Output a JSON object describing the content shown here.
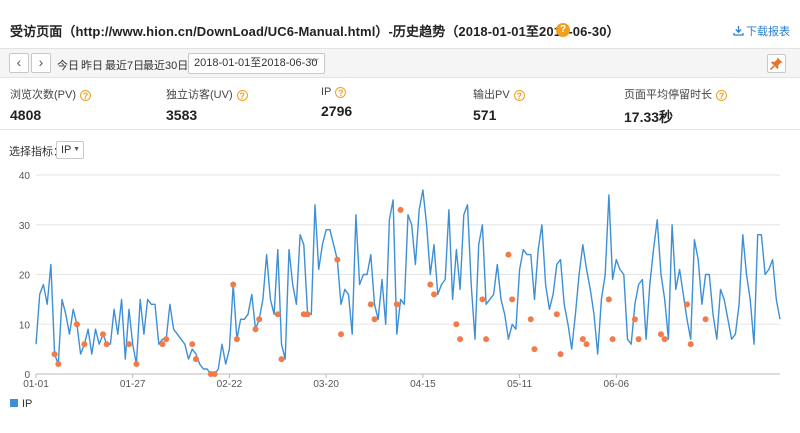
{
  "header": {
    "title": "受访页面（http://www.hion.cn/DownLoad/UC6-Manual.html）-历史趋势（2018-01-01至2018-06-30）",
    "help": "?",
    "download_label": "下载报表"
  },
  "toolbar": {
    "prev": "‹",
    "next": "›",
    "ranges": [
      "今日",
      "昨日",
      "最近7日",
      "最近30日"
    ],
    "date_range": "2018-01-01至2018-06-30"
  },
  "metrics": [
    {
      "label": "浏览次数(PV)",
      "value": "4808"
    },
    {
      "label": "独立访客(UV)",
      "value": "3583"
    },
    {
      "label": "IP",
      "value": "2796"
    },
    {
      "label": "输出PV",
      "value": "571"
    },
    {
      "label": "页面平均停留时长",
      "value": "17.33秒"
    }
  ],
  "selector": {
    "label": "选择指标：",
    "value": "IP"
  },
  "colors": {
    "line": "#3d8fd6",
    "marker": "#f27b4a",
    "grid": "#e6e6e6",
    "help": "#f0a020"
  },
  "chart_data": {
    "type": "line",
    "series": [
      {
        "name": "IP",
        "values": [
          6,
          16,
          18,
          14,
          22,
          4,
          2,
          15,
          12,
          8,
          13,
          10,
          4,
          6,
          9,
          4,
          9,
          6,
          8,
          6,
          6,
          13,
          8,
          15,
          3,
          13,
          6,
          2,
          15,
          8,
          15,
          14,
          14,
          6,
          7,
          7,
          14,
          9,
          8,
          7,
          6,
          3,
          5,
          4,
          2,
          1,
          1,
          0,
          0,
          1,
          6,
          2,
          5,
          18,
          7,
          11,
          11,
          12,
          16,
          9,
          11,
          15,
          24,
          15,
          12,
          25,
          6,
          3,
          25,
          18,
          14,
          28,
          26,
          12,
          12,
          34,
          21,
          26,
          29,
          29,
          26,
          23,
          14,
          17,
          16,
          8,
          32,
          18,
          20,
          20,
          24,
          14,
          11,
          19,
          10,
          31,
          35,
          8,
          15,
          14,
          32,
          30,
          22,
          33,
          37,
          30,
          20,
          26,
          16,
          18,
          19,
          33,
          15,
          25,
          17,
          32,
          34,
          18,
          7,
          26,
          30,
          14,
          15,
          16,
          22,
          15,
          12,
          7,
          10,
          9,
          21,
          25,
          24,
          24,
          15,
          25,
          30,
          18,
          13,
          16,
          22,
          23,
          14,
          10,
          5,
          12,
          20,
          26,
          21,
          17,
          12,
          4,
          15,
          20,
          36,
          19,
          23,
          21,
          20,
          7,
          6,
          14,
          18,
          19,
          7,
          18,
          25,
          31,
          20,
          15,
          7,
          30,
          17,
          21,
          16,
          11,
          7,
          27,
          23,
          14,
          20,
          20,
          12,
          7,
          17,
          15,
          11,
          7,
          8,
          14,
          28,
          20,
          15,
          6,
          28,
          28,
          20,
          21,
          23,
          15,
          11
        ]
      }
    ],
    "markers": [
      [
        5,
        4
      ],
      [
        6,
        2
      ],
      [
        11,
        10
      ],
      [
        13,
        6
      ],
      [
        18,
        8
      ],
      [
        19,
        6
      ],
      [
        25,
        6
      ],
      [
        27,
        2
      ],
      [
        34,
        6
      ],
      [
        35,
        7
      ],
      [
        42,
        6
      ],
      [
        43,
        3
      ],
      [
        47,
        0
      ],
      [
        48,
        0
      ],
      [
        53,
        18
      ],
      [
        54,
        7
      ],
      [
        59,
        9
      ],
      [
        60,
        11
      ],
      [
        65,
        12
      ],
      [
        66,
        3
      ],
      [
        72,
        12
      ],
      [
        73,
        12
      ],
      [
        81,
        23
      ],
      [
        82,
        8
      ],
      [
        90,
        14
      ],
      [
        91,
        11
      ],
      [
        97,
        14
      ],
      [
        98,
        33
      ],
      [
        106,
        18
      ],
      [
        107,
        16
      ],
      [
        113,
        10
      ],
      [
        114,
        7
      ],
      [
        120,
        15
      ],
      [
        121,
        7
      ],
      [
        127,
        24
      ],
      [
        128,
        15
      ],
      [
        133,
        11
      ],
      [
        134,
        5
      ],
      [
        140,
        12
      ],
      [
        141,
        4
      ],
      [
        147,
        7
      ],
      [
        148,
        6
      ],
      [
        154,
        15
      ],
      [
        155,
        7
      ],
      [
        161,
        11
      ],
      [
        162,
        7
      ],
      [
        168,
        8
      ],
      [
        169,
        7
      ],
      [
        175,
        14
      ],
      [
        176,
        6
      ],
      [
        180,
        11
      ]
    ],
    "x_ticks": [
      {
        "i": 0,
        "label": "01-01"
      },
      {
        "i": 26,
        "label": "01-27"
      },
      {
        "i": 52,
        "label": "02-22"
      },
      {
        "i": 78,
        "label": "03-20"
      },
      {
        "i": 104,
        "label": "04-15"
      },
      {
        "i": 130,
        "label": "05-11"
      },
      {
        "i": 156,
        "label": "06-06"
      }
    ],
    "y_ticks": [
      0,
      10,
      20,
      30,
      40
    ],
    "ylim": [
      0,
      40
    ],
    "grid": true,
    "legend": "bottom-left"
  }
}
